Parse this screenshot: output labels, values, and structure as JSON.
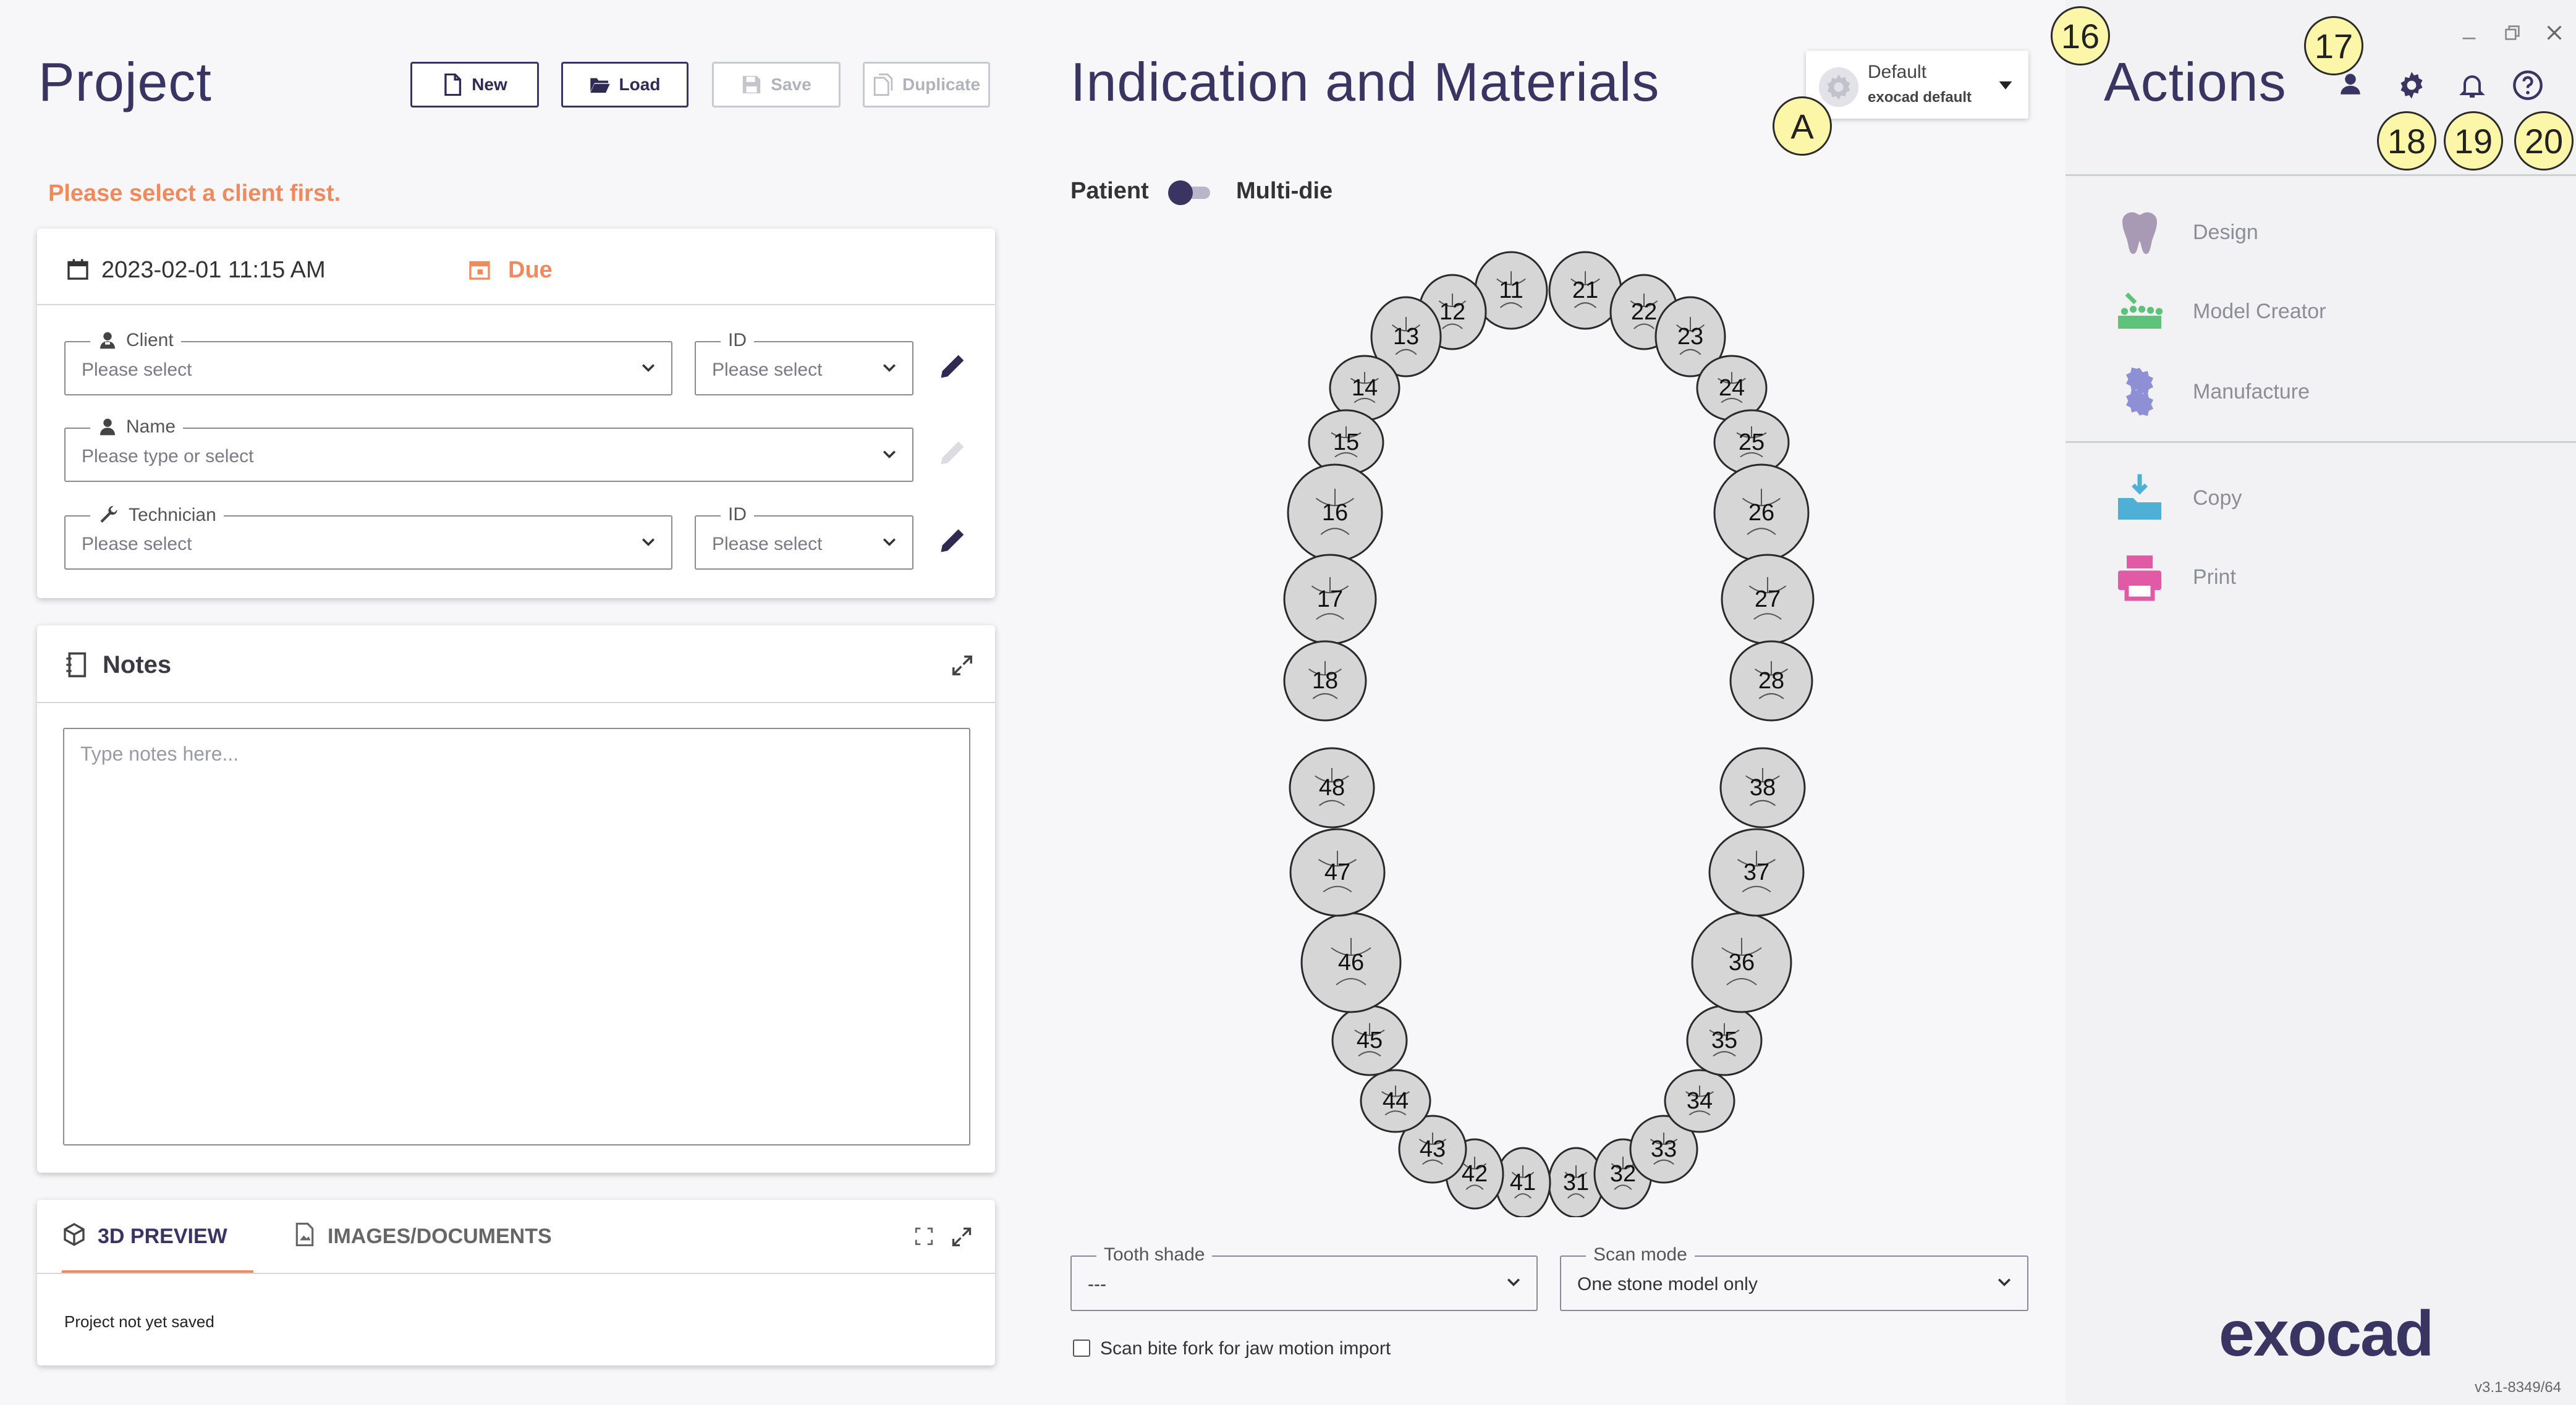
{
  "project": {
    "title": "Project",
    "toolbar": {
      "new": "New",
      "load": "Load",
      "save": "Save",
      "duplicate": "Duplicate"
    },
    "warning": "Please select a client first.",
    "datetime": "2023-02-01 11:15 AM",
    "due_label": "Due",
    "client_label": "Client",
    "client_placeholder": "Please select",
    "client_id_label": "ID",
    "client_id_placeholder": "Please select",
    "name_label": "Name",
    "name_placeholder": "Please type or select",
    "technician_label": "Technician",
    "technician_placeholder": "Please select",
    "technician_id_label": "ID",
    "technician_id_placeholder": "Please select"
  },
  "notes": {
    "title": "Notes",
    "placeholder": "Type notes here..."
  },
  "preview": {
    "tabs": [
      {
        "label": "3D PREVIEW",
        "active": true
      },
      {
        "label": "IMAGES/DOCUMENTS",
        "active": false
      }
    ],
    "status": "Project not yet saved"
  },
  "indication": {
    "title": "Indication and Materials",
    "preset_name": "Default",
    "preset_sub": "exocad default",
    "patient_label": "Patient",
    "multidie_label": "Multi-die",
    "tooth_shade_label": "Tooth shade",
    "tooth_shade_value": "---",
    "scan_mode_label": "Scan mode",
    "scan_mode_value": "One stone model only",
    "bite_fork_label": "Scan bite fork for jaw motion import",
    "teeth": [
      "11",
      "12",
      "13",
      "14",
      "15",
      "16",
      "17",
      "18",
      "21",
      "22",
      "23",
      "24",
      "25",
      "26",
      "27",
      "28",
      "31",
      "32",
      "33",
      "34",
      "35",
      "36",
      "37",
      "38",
      "41",
      "42",
      "43",
      "44",
      "45",
      "46",
      "47",
      "48"
    ]
  },
  "actions": {
    "title": "Actions",
    "items": [
      {
        "label": "Design",
        "icon": "tooth-icon"
      },
      {
        "label": "Model Creator",
        "icon": "model-creator-icon"
      },
      {
        "label": "Manufacture",
        "icon": "gear-icon"
      },
      {
        "label": "Copy",
        "icon": "copy-folder-icon"
      },
      {
        "label": "Print",
        "icon": "printer-icon"
      }
    ],
    "logo": "exocad",
    "version": "v3.1-8349/64"
  },
  "callouts": {
    "c16": "16",
    "c17": "17",
    "c18": "18",
    "c19": "19",
    "c20": "20",
    "cA": "A"
  },
  "colors": {
    "accent": "#3a3462",
    "warning": "#f08a5d",
    "design": "#a89ab5",
    "model": "#5ec27a",
    "manufacture": "#8f8fd6",
    "copy": "#4fb0d6",
    "print": "#e05aa6"
  }
}
